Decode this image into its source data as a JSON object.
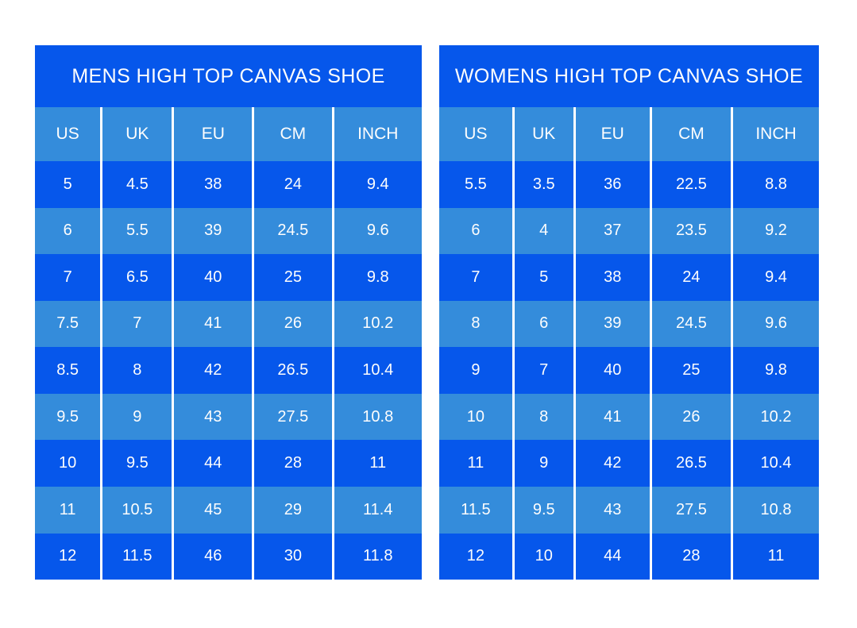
{
  "page": {
    "background": "#ffffff"
  },
  "colors": {
    "dark_blue": "#0657eb",
    "light_blue": "#348cdb",
    "text": "#fdfdfd",
    "divider": "#ffffff"
  },
  "chart_data": [
    {
      "type": "table",
      "title": "MENS HIGH TOP CANVAS SHOE",
      "columns": [
        "US",
        "UK",
        "EU",
        "CM",
        "INCH"
      ],
      "rows": [
        [
          "5",
          "4.5",
          "38",
          "24",
          "9.4"
        ],
        [
          "6",
          "5.5",
          "39",
          "24.5",
          "9.6"
        ],
        [
          "7",
          "6.5",
          "40",
          "25",
          "9.8"
        ],
        [
          "7.5",
          "7",
          "41",
          "26",
          "10.2"
        ],
        [
          "8.5",
          "8",
          "42",
          "26.5",
          "10.4"
        ],
        [
          "9.5",
          "9",
          "43",
          "27.5",
          "10.8"
        ],
        [
          "10",
          "9.5",
          "44",
          "28",
          "11"
        ],
        [
          "11",
          "10.5",
          "45",
          "29",
          "11.4"
        ],
        [
          "12",
          "11.5",
          "46",
          "30",
          "11.8"
        ]
      ],
      "row_stripe_pattern": [
        "dark",
        "light",
        "dark",
        "light",
        "dark",
        "light",
        "dark",
        "light",
        "dark"
      ]
    },
    {
      "type": "table",
      "title": "WOMENS HIGH TOP CANVAS SHOE",
      "columns": [
        "US",
        "UK",
        "EU",
        "CM",
        "INCH"
      ],
      "rows": [
        [
          "5.5",
          "3.5",
          "36",
          "22.5",
          "8.8"
        ],
        [
          "6",
          "4",
          "37",
          "23.5",
          "9.2"
        ],
        [
          "7",
          "5",
          "38",
          "24",
          "9.4"
        ],
        [
          "8",
          "6",
          "39",
          "24.5",
          "9.6"
        ],
        [
          "9",
          "7",
          "40",
          "25",
          "9.8"
        ],
        [
          "10",
          "8",
          "41",
          "26",
          "10.2"
        ],
        [
          "11",
          "9",
          "42",
          "26.5",
          "10.4"
        ],
        [
          "11.5",
          "9.5",
          "43",
          "27.5",
          "10.8"
        ],
        [
          "12",
          "10",
          "44",
          "28",
          "11"
        ]
      ],
      "row_stripe_pattern": [
        "dark",
        "light",
        "dark",
        "light",
        "dark",
        "light",
        "dark",
        "light",
        "dark"
      ]
    }
  ]
}
